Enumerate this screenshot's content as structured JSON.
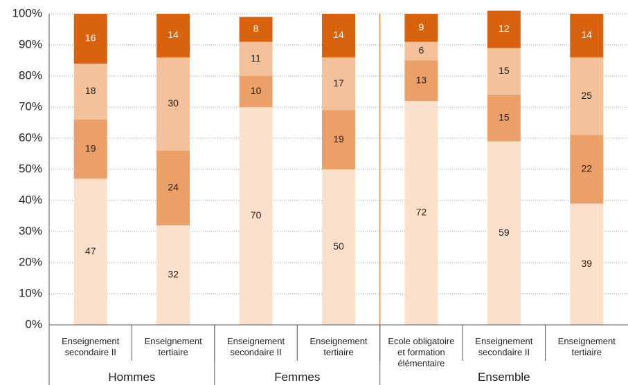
{
  "chart_data": {
    "type": "stacked_bar",
    "categories": [
      "Enseignement secondaire II",
      "Enseignement tertiaire",
      "Enseignement secondaire II",
      "Enseignement tertiaire",
      "Ecole obligatoire et formation élémentaire",
      "Enseignement secondaire II",
      "Enseignement tertiaire"
    ],
    "groups": [
      "Hommes",
      "Femmes",
      "Ensemble"
    ],
    "series": [
      {
        "color": "#fbe0cb",
        "values": [
          47,
          32,
          70,
          50,
          72,
          59,
          39
        ]
      },
      {
        "color": "#eaa066",
        "values": [
          19,
          24,
          10,
          19,
          13,
          15,
          22
        ]
      },
      {
        "color": "#f3c29b",
        "values": [
          18,
          30,
          11,
          17,
          6,
          15,
          25
        ]
      },
      {
        "color": "#d9620f",
        "values": [
          16,
          14,
          8,
          14,
          9,
          12,
          14
        ]
      }
    ],
    "ylim": [
      0,
      100
    ],
    "yticks": [
      {
        "value": 0,
        "label": "0%"
      },
      {
        "value": 10,
        "label": "10%"
      },
      {
        "value": 20,
        "label": "20%"
      },
      {
        "value": 30,
        "label": "30%"
      },
      {
        "value": 40,
        "label": "40%"
      },
      {
        "value": 50,
        "label": "50%"
      },
      {
        "value": 60,
        "label": "60%"
      },
      {
        "value": 70,
        "label": "70%"
      },
      {
        "value": 80,
        "label": "80%"
      },
      {
        "value": 90,
        "label": "90%"
      },
      {
        "value": 100,
        "label": "100%"
      }
    ],
    "grid": true
  }
}
